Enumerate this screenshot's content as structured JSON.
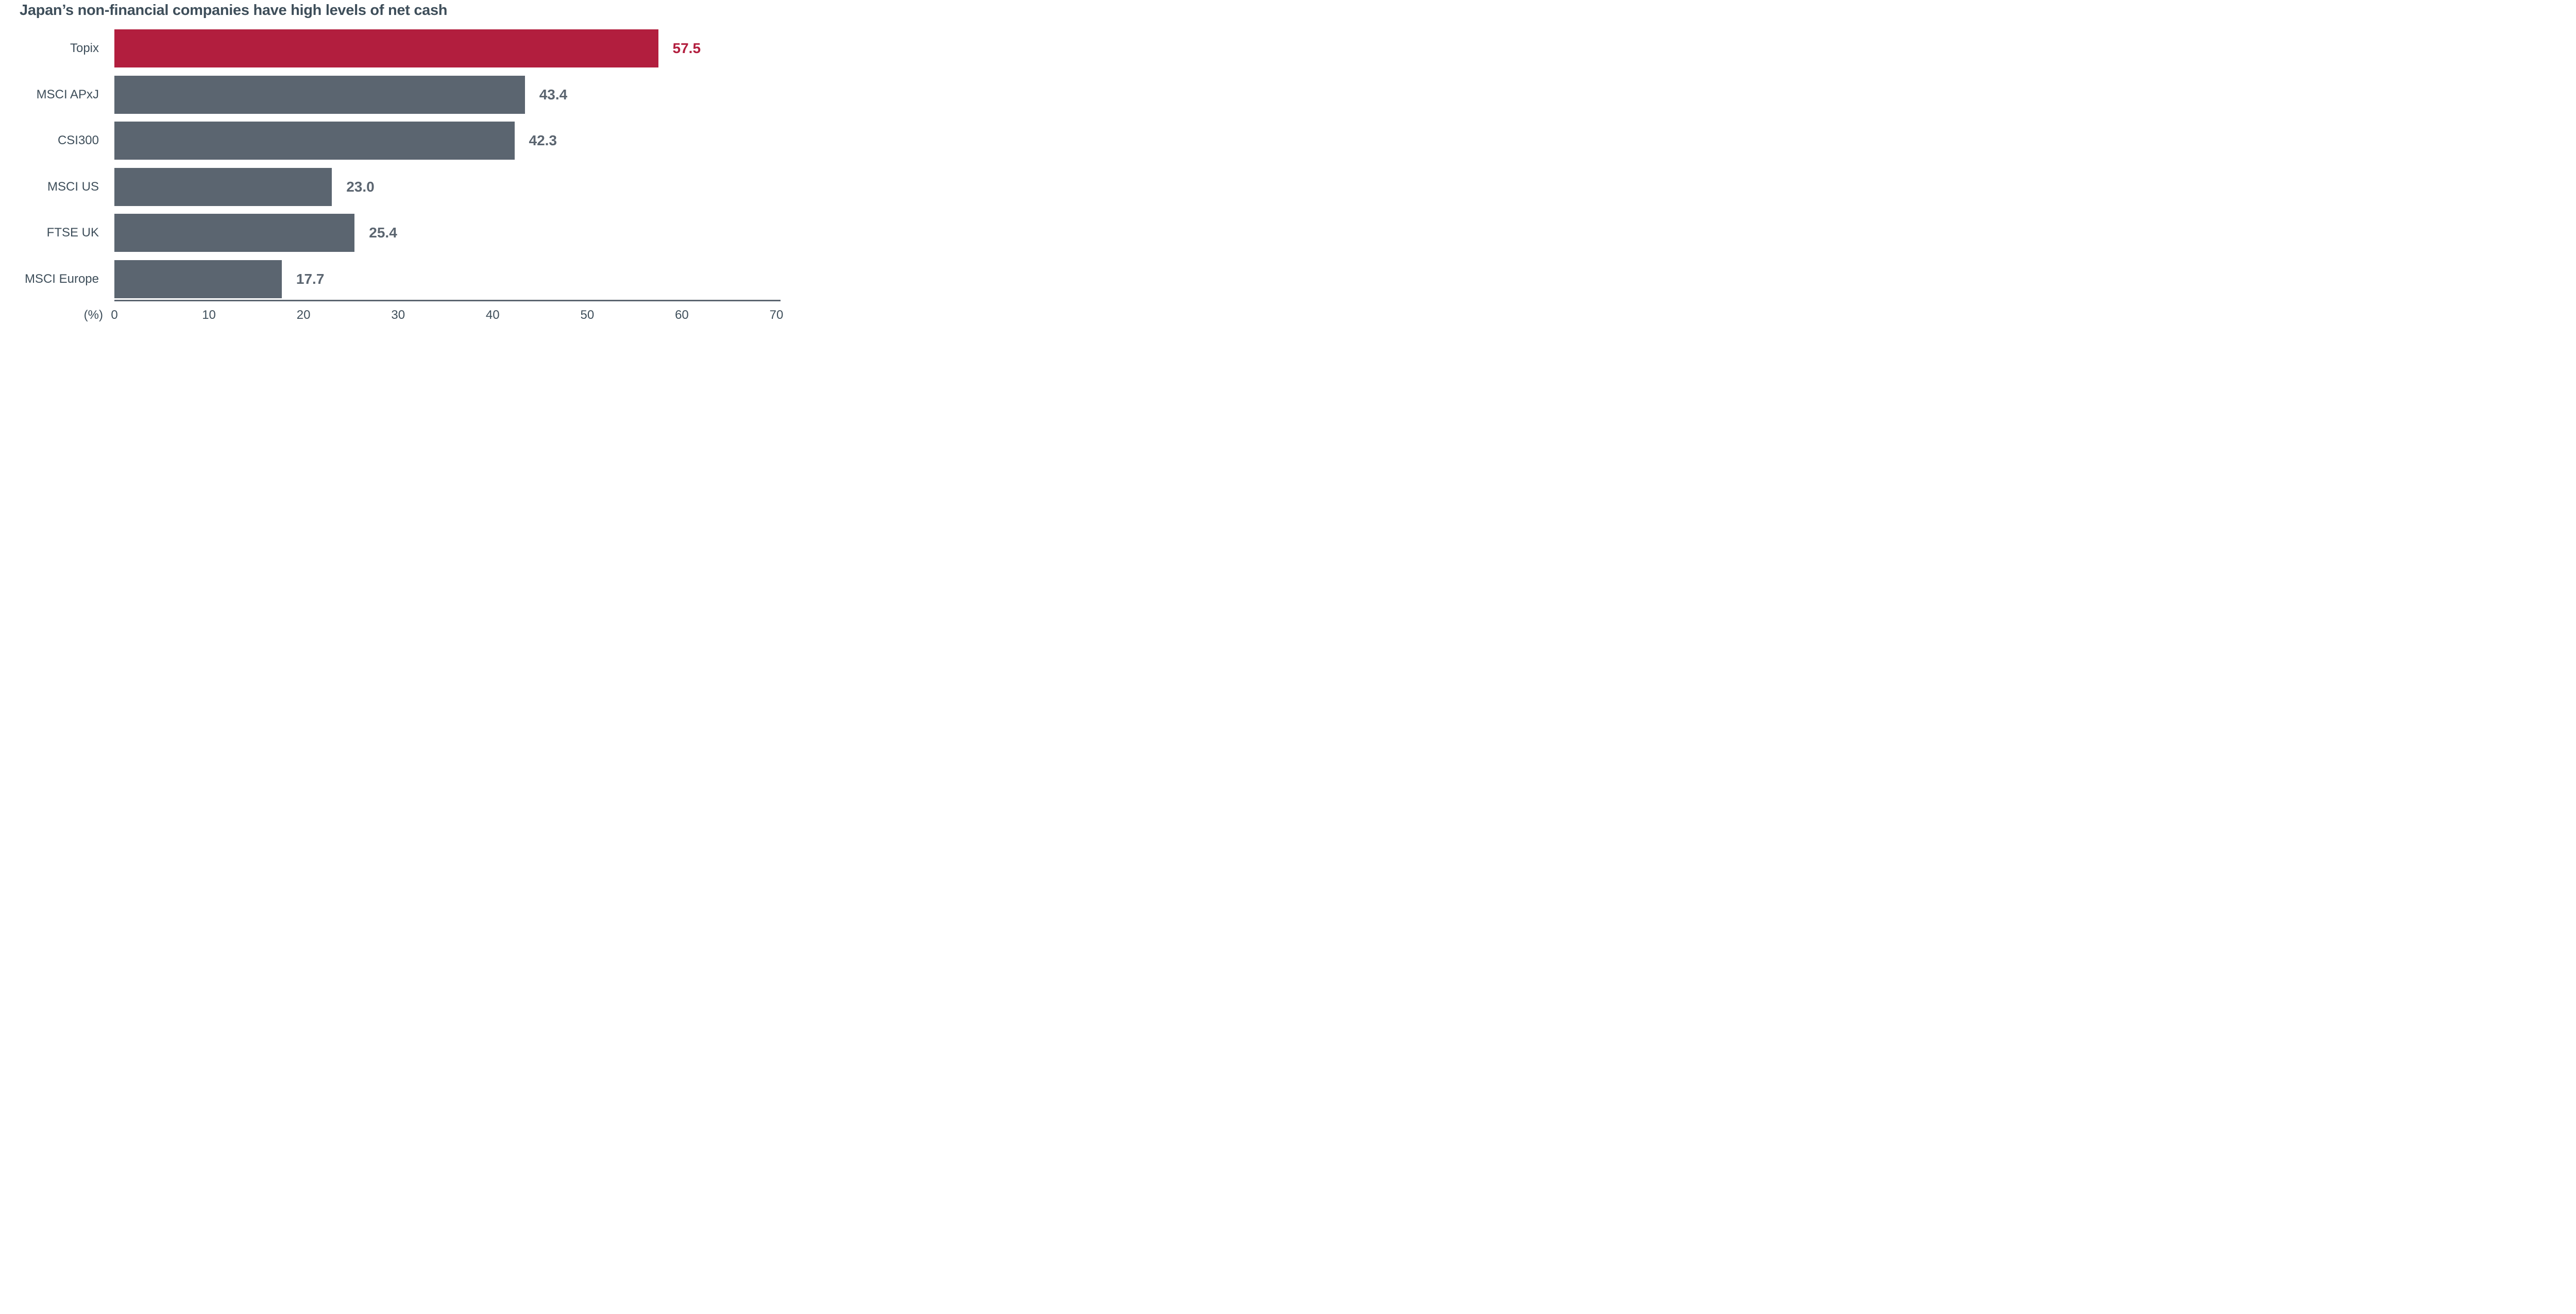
{
  "chart_data": {
    "type": "bar",
    "orientation": "horizontal",
    "title": "Japan’s non-financial companies have high levels of net cash",
    "categories": [
      "Topix",
      "MSCI APxJ",
      "CSI300",
      "MSCI US",
      "FTSE UK",
      "MSCI Europe"
    ],
    "values": [
      57.5,
      43.4,
      42.3,
      23.0,
      25.4,
      17.7
    ],
    "value_labels": [
      "57.5",
      "43.4",
      "42.3",
      "23.0",
      "25.4",
      "17.7"
    ],
    "highlight_index": 0,
    "xlabel": "(%)",
    "ylabel": "",
    "xlim": [
      0,
      70
    ],
    "xticks": [
      0,
      10,
      20,
      30,
      40,
      50,
      60,
      70
    ],
    "grid": false,
    "legend": false,
    "colors": {
      "bar_default": "#5B6570",
      "bar_highlight": "#B21E3E",
      "value_default": "#5B6570",
      "value_highlight": "#B21E3E",
      "text": "#3E4E5A",
      "axis": "#5B6570",
      "background": "#FFFFFF"
    }
  }
}
